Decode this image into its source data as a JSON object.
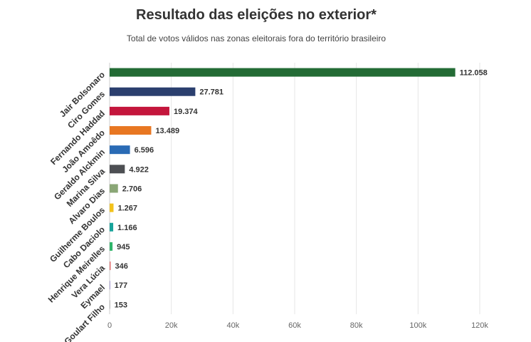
{
  "chart_data": {
    "type": "bar",
    "orientation": "horizontal",
    "title": "Resultado das eleições no exterior*",
    "subtitle": "Total de votos válidos nas zonas eleitorais fora do território brasileiro",
    "categories": [
      "Jair Bolsonaro",
      "Ciro Gomes",
      "Fernando Haddad",
      "João Amoêdo",
      "Geraldo Alckmin",
      "Marina Silva",
      "Alvaro Dias",
      "Guilherme Boulos",
      "Cabo Daciolo",
      "Henrique Meirelles",
      "Vera Lúcia",
      "Eymael",
      "Goulart Filho"
    ],
    "values": [
      112058,
      27781,
      19374,
      13489,
      6596,
      4922,
      2706,
      1267,
      1166,
      945,
      346,
      177,
      153
    ],
    "value_labels": [
      "112.058",
      "27.781",
      "19.374",
      "13.489",
      "6.596",
      "4.922",
      "2.706",
      "1.267",
      "1.166",
      "945",
      "346",
      "177",
      "153"
    ],
    "colors": [
      "#236b35",
      "#2b3f6e",
      "#c4163c",
      "#e87722",
      "#2a6bb5",
      "#4d4f53",
      "#8aa676",
      "#f2c21b",
      "#17a39b",
      "#2fb56a",
      "#e07070",
      "#8a7fc4",
      "#9a9a9a"
    ],
    "xlim": [
      0,
      120000
    ],
    "ticks": [
      0,
      20000,
      40000,
      60000,
      80000,
      100000,
      120000
    ],
    "tick_labels": [
      "0",
      "20k",
      "40k",
      "60k",
      "80k",
      "100k",
      "120k"
    ],
    "grid": true,
    "xlabel": "",
    "ylabel": ""
  }
}
